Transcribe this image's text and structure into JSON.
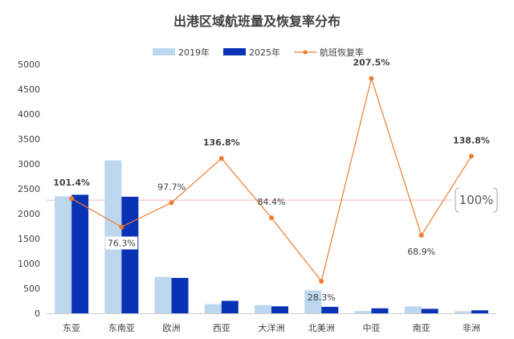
{
  "chart_data": {
    "type": "bar",
    "title": "出港区域航班量及恢复率分布",
    "categories": [
      "东亚",
      "东南亚",
      "欧洲",
      "西亚",
      "大洋洲",
      "北美洲",
      "中亚",
      "南亚",
      "非洲"
    ],
    "series": [
      {
        "name": "2019年",
        "kind": "bar",
        "color": "#BDD7EE",
        "values": [
          2350,
          3070,
          730,
          185,
          165,
          460,
          45,
          140,
          40
        ]
      },
      {
        "name": "2025年",
        "kind": "bar",
        "color": "#0A32B4",
        "values": [
          2380,
          2340,
          710,
          250,
          140,
          130,
          100,
          90,
          60
        ]
      },
      {
        "name": "航班恢复率",
        "kind": "line",
        "color": "#ED7D31",
        "axis": "secondary",
        "values": [
          101.4,
          76.3,
          97.7,
          136.8,
          84.4,
          28.3,
          207.5,
          68.9,
          138.8
        ],
        "labels": [
          "101.4%",
          "76.3%",
          "97.7%",
          "136.8%",
          "84.4%",
          "28.3%",
          "207.5%",
          "68.9%",
          "138.8%"
        ],
        "bold": [
          true,
          false,
          false,
          true,
          false,
          false,
          true,
          false,
          true
        ]
      }
    ],
    "ylim": [
      0,
      5000
    ],
    "yticks": [
      0,
      500,
      1000,
      1500,
      2000,
      2500,
      3000,
      3500,
      4000,
      4500,
      5000
    ],
    "secondary_ylim": [
      0,
      220
    ],
    "reference_line": {
      "value": 100,
      "label": "100%",
      "color": "#F4B6B6"
    },
    "legend_position": "top-center",
    "xlabel": "",
    "ylabel": ""
  }
}
